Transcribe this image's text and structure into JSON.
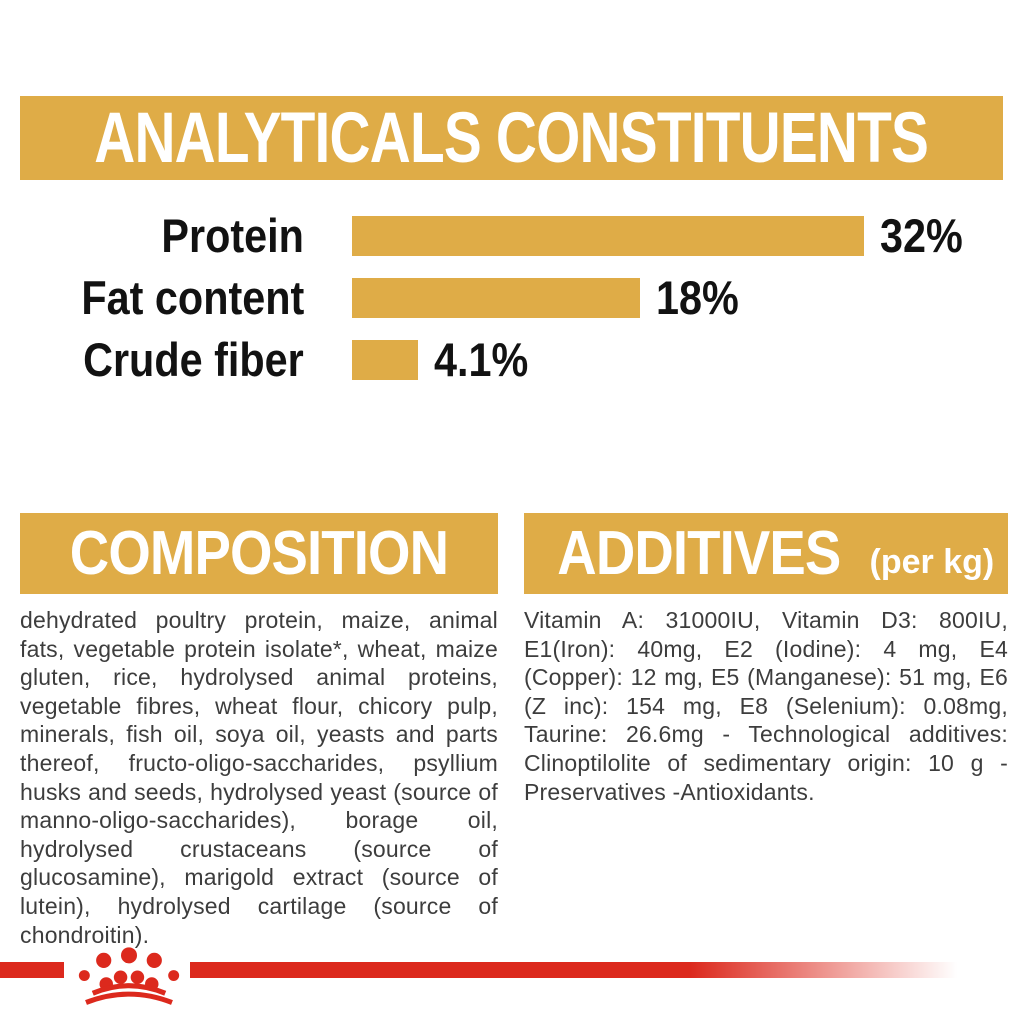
{
  "analyticals": {
    "title": "ANALYTICALS CONSTITUENTS"
  },
  "chart_data": {
    "type": "bar",
    "orientation": "horizontal",
    "categories": [
      "Protein",
      "Fat content",
      "Crude fiber"
    ],
    "values": [
      32,
      18,
      4.1
    ],
    "value_labels": [
      "32%",
      "18%",
      "4.1%"
    ],
    "xlim": [
      0,
      32
    ],
    "bar_color": "#dfac47",
    "text_color": "#121212",
    "grid": false,
    "legend": false
  },
  "composition": {
    "title": "COMPOSITION",
    "body": "dehydrated poultry protein, maize, animal fats, vegetable protein isolate*, wheat, maize gluten, rice, hydrolysed animal proteins, vegetable fibres, wheat flour, chicory pulp, minerals, fish oil, soya oil, yeasts and parts thereof, fructo-oligo-saccharides, psyllium husks and seeds, hydrolysed yeast (source of manno-oligo-saccharides), borage oil, hydrolysed crustaceans (source of glucosamine), marigold extract (source of lutein), hydrolysed cartilage (source of chondroitin)."
  },
  "additives": {
    "title": "ADDITIVES",
    "subtitle": "(per kg)",
    "body": "Vitamin A: 31000IU, Vitamin D3: 800IU, E1(Iron): 40mg, E2 (Iodine): 4 mg, E4 (Copper): 12 mg, E5 (Manganese): 51 mg, E6 (Z inc): 154 mg, E8 (Selenium): 0.08mg, Taurine: 26.6mg - Technological additives: Clinoptilolite of sedimentary origin: 10 g - Preservatives -Antioxidants."
  },
  "colors": {
    "accent_gold": "#dfac47",
    "brand_red": "#dc291d",
    "heading_text": "#ffffff",
    "chart_text": "#121212",
    "body_text": "#3d3d3d"
  },
  "footer": {
    "logo": "royal-canin-crown"
  }
}
